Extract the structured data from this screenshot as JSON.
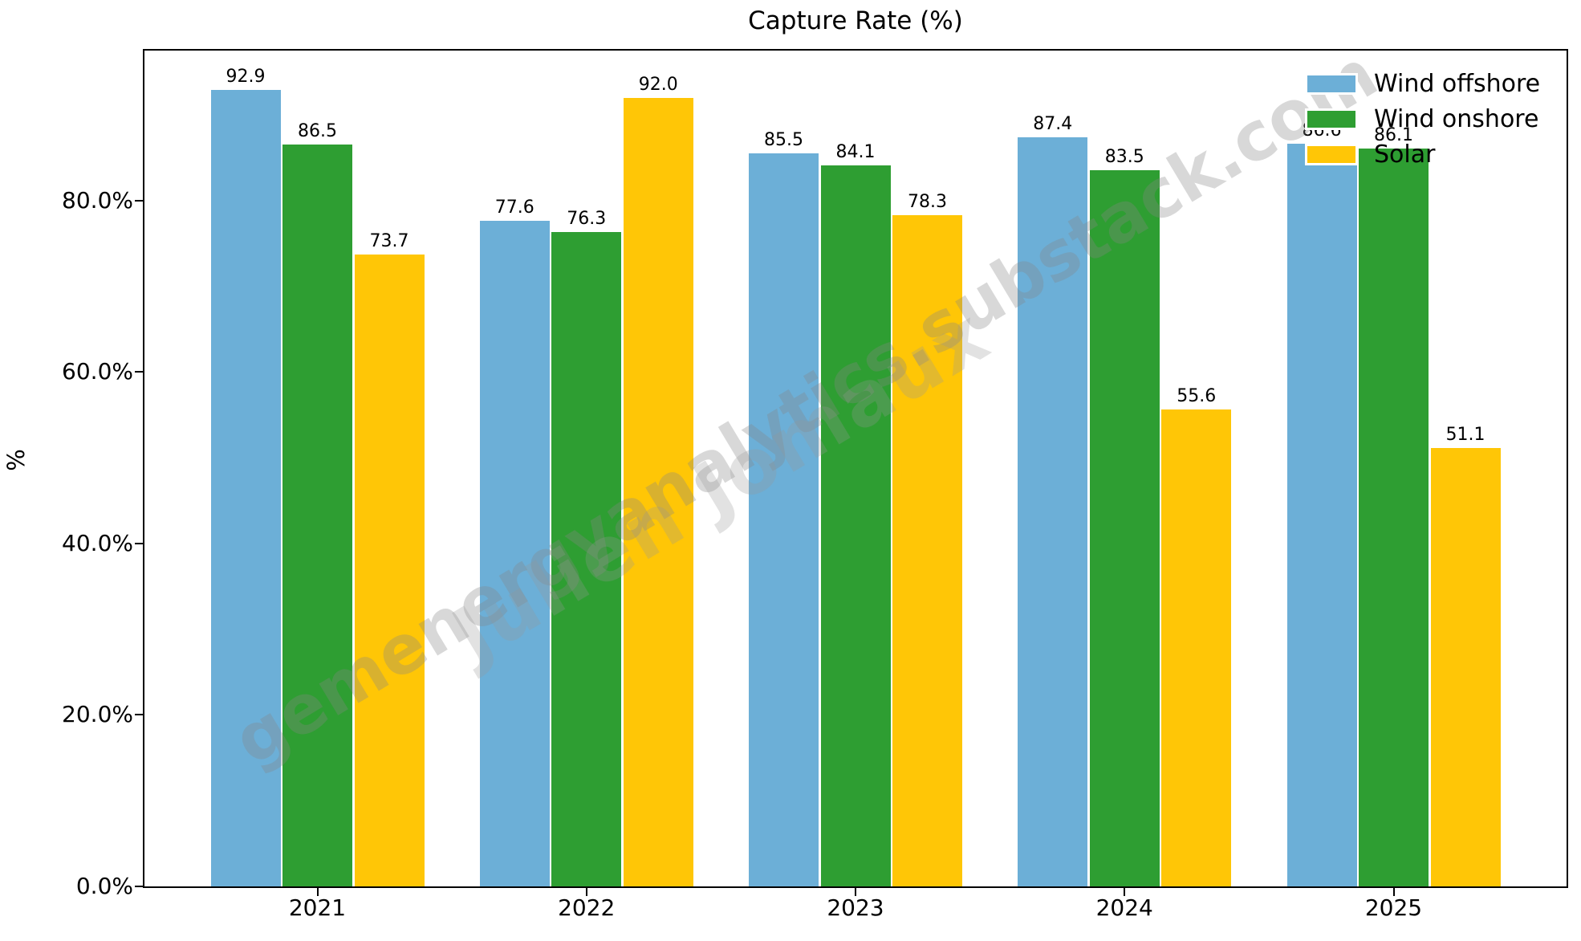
{
  "title": "Capture Rate (%)",
  "watermark": {
    "line1": "gemenergyanalytics.substack.com",
    "line2": "Julien Jomaux"
  },
  "chart_data": {
    "type": "bar",
    "title": "Capture Rate (%)",
    "xlabel": "",
    "ylabel": "%",
    "categories": [
      "2021",
      "2022",
      "2023",
      "2024",
      "2025"
    ],
    "series": [
      {
        "name": "Wind offshore",
        "color": "#6cafd7",
        "values": [
          92.9,
          77.6,
          85.5,
          87.4,
          86.6
        ]
      },
      {
        "name": "Wind onshore",
        "color": "#2e9e32",
        "values": [
          86.5,
          76.3,
          84.1,
          83.5,
          86.1
        ]
      },
      {
        "name": "Solar",
        "color": "#ffc606",
        "values": [
          73.7,
          92.0,
          78.3,
          55.6,
          51.1
        ]
      }
    ],
    "y_ticks": [
      {
        "value": 0,
        "label": "0.0%"
      },
      {
        "value": 20,
        "label": "20.0%"
      },
      {
        "value": 40,
        "label": "40.0%"
      },
      {
        "value": 60,
        "label": "60.0%"
      },
      {
        "value": 80,
        "label": "80.0%"
      }
    ],
    "ylim": [
      0,
      97.5
    ],
    "grid": false,
    "bar_value_labels": true,
    "legend_position": "upper right",
    "text_color": "#000000",
    "background_color": "#ffffff"
  }
}
